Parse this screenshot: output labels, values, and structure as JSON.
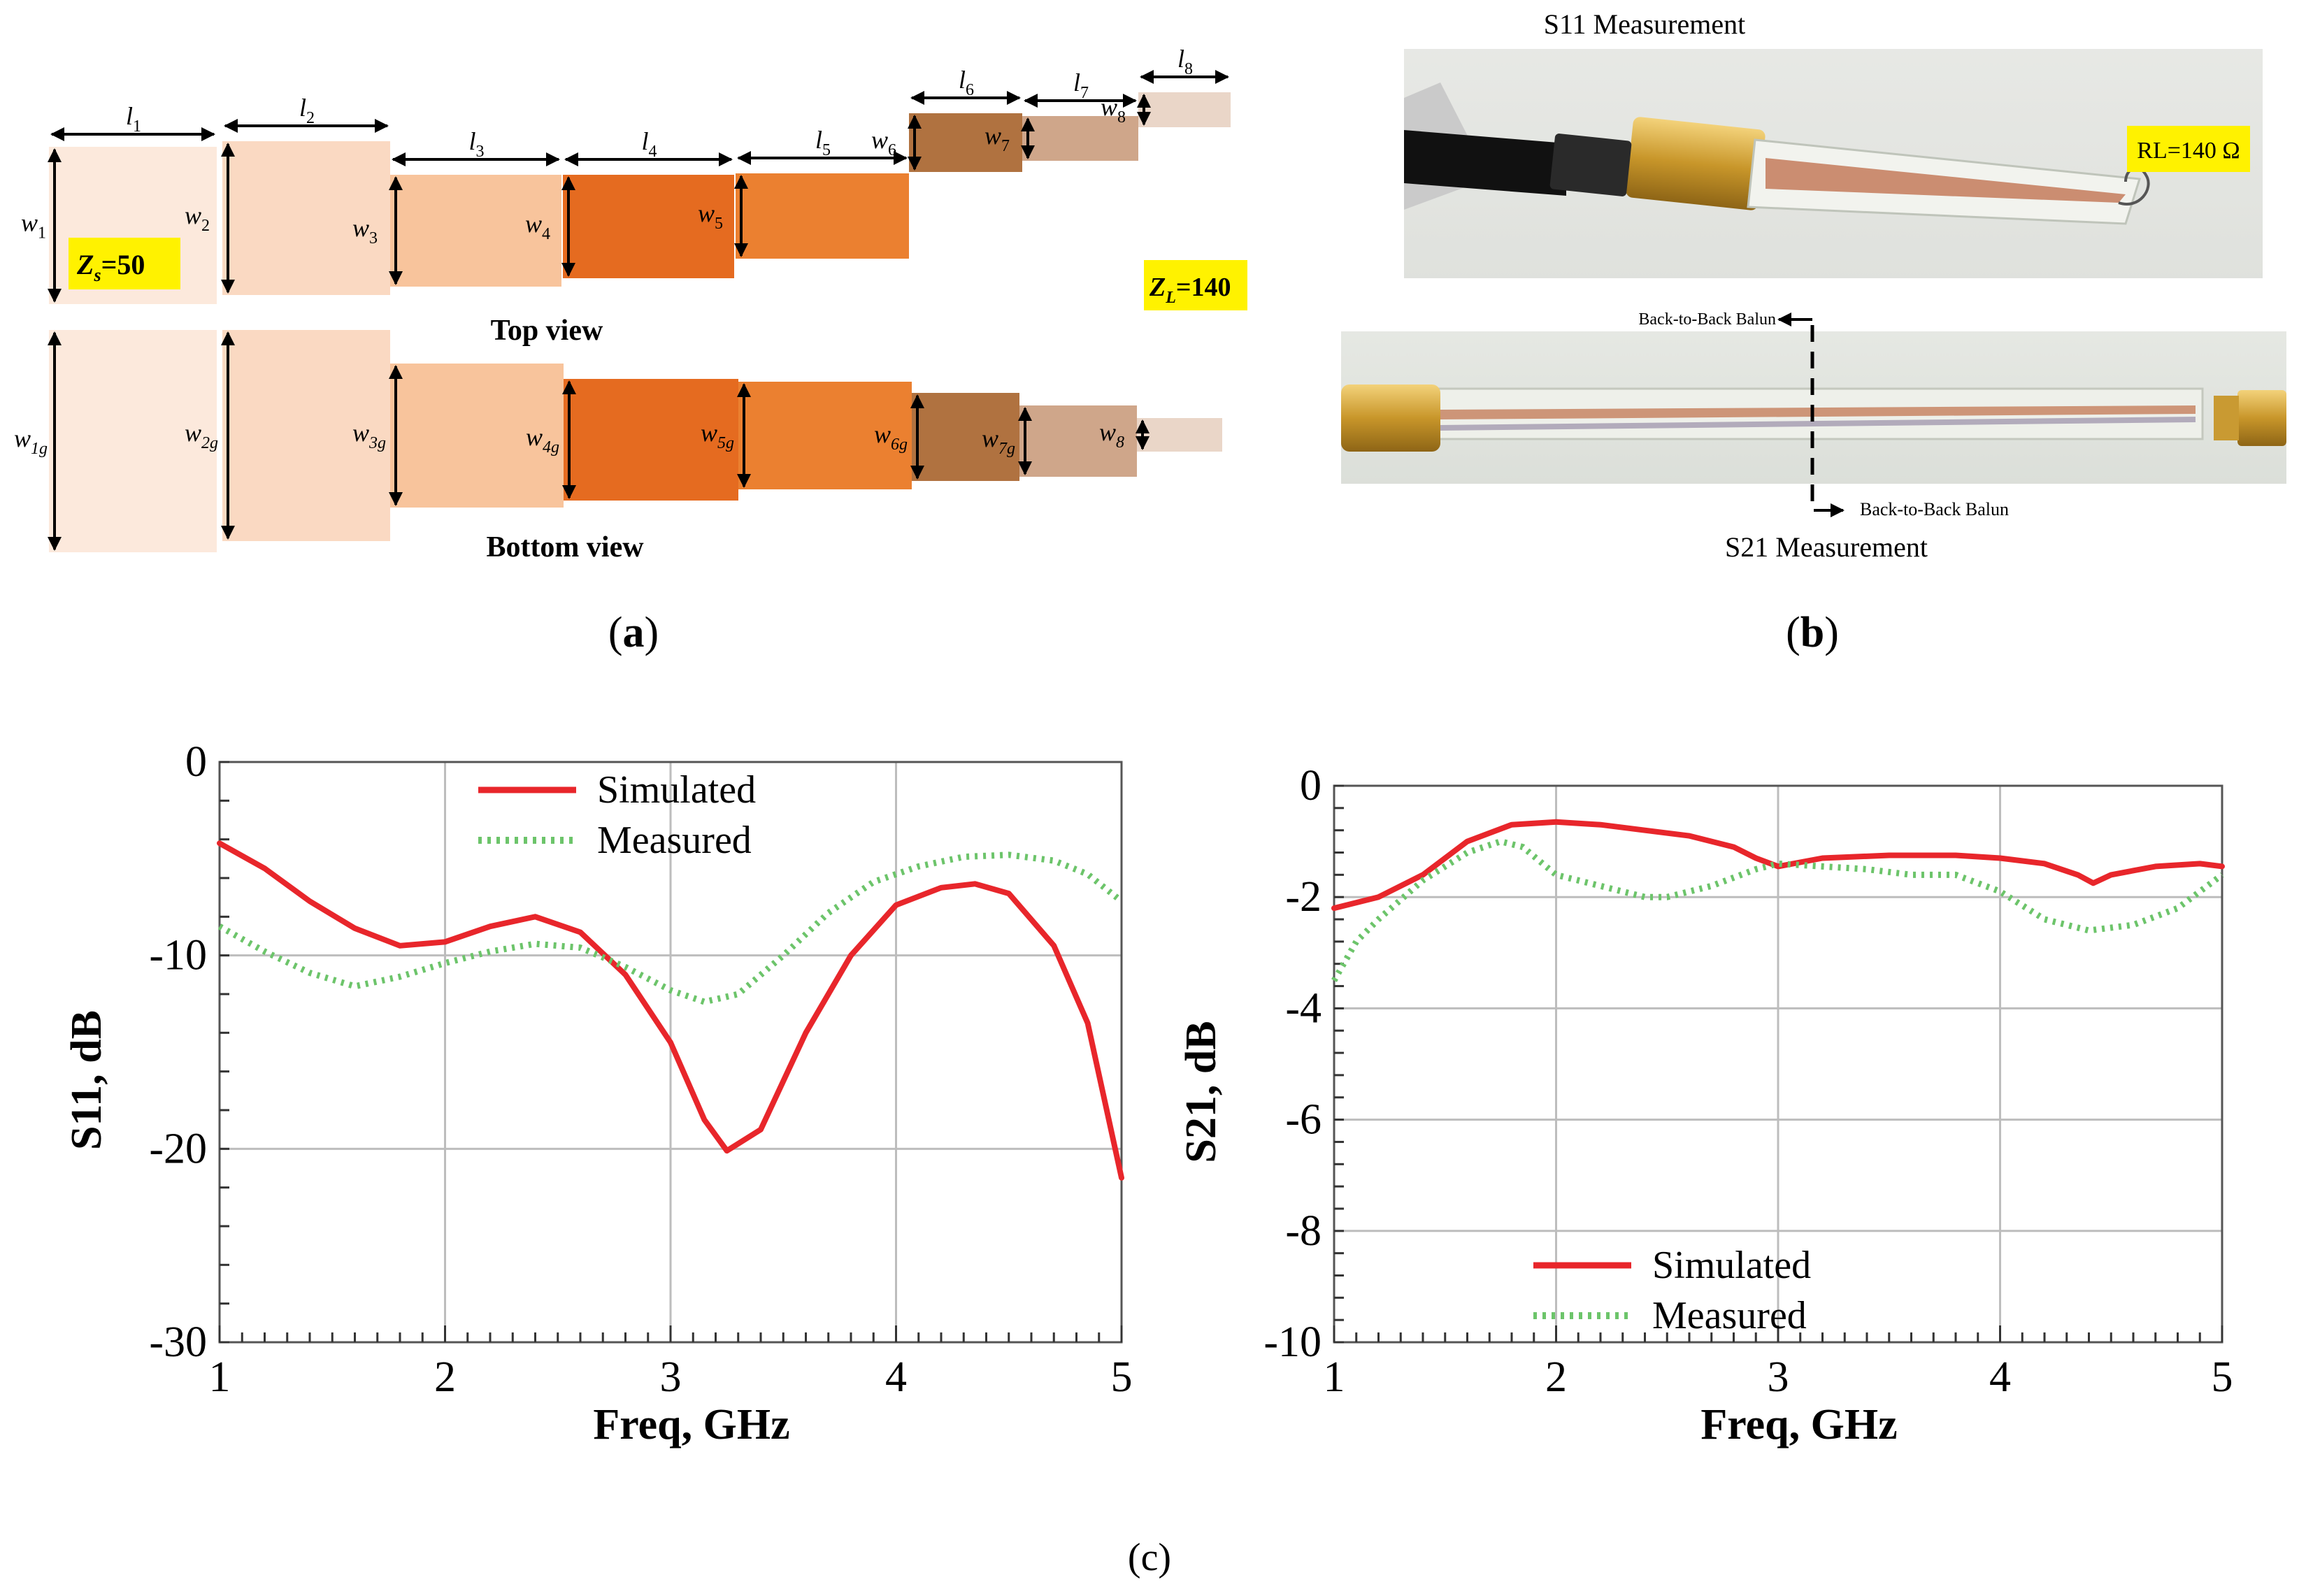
{
  "panel_a": {
    "segments": [
      {
        "l": "l",
        "l_sub": "1",
        "w": "w",
        "w_sub": "1",
        "wg": "w",
        "wg_sub": "1g",
        "color": "#FCE9DC"
      },
      {
        "l": "l",
        "l_sub": "2",
        "w": "w",
        "w_sub": "2",
        "wg": "w",
        "wg_sub": "2g",
        "color": "#FAD9C2"
      },
      {
        "l": "l",
        "l_sub": "3",
        "w": "w",
        "w_sub": "3",
        "wg": "w",
        "wg_sub": "3g",
        "color": "#F8C49C"
      },
      {
        "l": "l",
        "l_sub": "4",
        "w": "w",
        "w_sub": "4",
        "wg": "w",
        "wg_sub": "4g",
        "color": "#E56B20"
      },
      {
        "l": "l",
        "l_sub": "5",
        "w": "w",
        "w_sub": "5",
        "wg": "w",
        "wg_sub": "5g",
        "color": "#EB8030"
      },
      {
        "l": "l",
        "l_sub": "6",
        "w": "w",
        "w_sub": "6",
        "wg": "w",
        "wg_sub": "6g",
        "color": "#B07240"
      },
      {
        "l": "l",
        "l_sub": "7",
        "w": "w",
        "w_sub": "7",
        "wg": "w",
        "wg_sub": "7g",
        "color": "#CFA68A"
      },
      {
        "l": "l",
        "l_sub": "8",
        "w": "w",
        "w_sub": "8",
        "wg": "w",
        "wg_sub": "8",
        "color": "#EAD6C8"
      }
    ],
    "zs_label": "Z",
    "zs_sub": "s",
    "zs_value": "=50",
    "zl_label": "Z",
    "zl_sub": "L",
    "zl_value": "=140",
    "top_view": "Top view",
    "bottom_view": "Bottom view",
    "caption_open": "(",
    "caption_letter": "a",
    "caption_close": ")",
    "highlight_color": "#FFF200"
  },
  "panel_b": {
    "s11_title": "S11 Measurement",
    "rl_label": "RL=140 Ω",
    "back_to_back_1": "Back-to-Back Balun",
    "back_to_back_2": "Back-to-Back Balun",
    "s21_title": "S21 Measurement",
    "caption_open": "(",
    "caption_letter": "b",
    "caption_close": ")"
  },
  "panel_c_caption": "(c)",
  "chart_data": [
    {
      "type": "line",
      "xlabel": "Freq, GHz",
      "ylabel": "S11, dB",
      "xlim": [
        1,
        5
      ],
      "ylim": [
        -30,
        0
      ],
      "xticks": [
        "1",
        "2",
        "3",
        "4",
        "5"
      ],
      "yticks": [
        "0",
        "-10",
        "-20",
        "-30"
      ],
      "ytick_values": [
        0,
        -10,
        -20,
        -30
      ],
      "grid": true,
      "legend_position": "top-center",
      "series": [
        {
          "name": "Simulated",
          "color": "#E8262B",
          "style": "solid",
          "x": [
            1,
            1.2,
            1.4,
            1.6,
            1.8,
            2.0,
            2.2,
            2.4,
            2.6,
            2.8,
            3.0,
            3.15,
            3.25,
            3.4,
            3.6,
            3.8,
            4.0,
            4.2,
            4.35,
            4.5,
            4.7,
            4.85,
            5.0
          ],
          "y": [
            -4.2,
            -5.5,
            -7.2,
            -8.6,
            -9.5,
            -9.3,
            -8.5,
            -8.0,
            -8.8,
            -11.0,
            -14.5,
            -18.5,
            -20.1,
            -19.0,
            -14.0,
            -10.0,
            -7.4,
            -6.5,
            -6.3,
            -6.8,
            -9.5,
            -13.5,
            -21.5
          ]
        },
        {
          "name": "Measured",
          "color": "#6CC46A",
          "style": "dotted",
          "x": [
            1,
            1.2,
            1.4,
            1.6,
            1.8,
            2.0,
            2.2,
            2.4,
            2.6,
            2.8,
            3.0,
            3.15,
            3.3,
            3.5,
            3.7,
            3.9,
            4.1,
            4.3,
            4.5,
            4.7,
            4.85,
            5.0
          ],
          "y": [
            -8.5,
            -9.8,
            -10.9,
            -11.6,
            -11.1,
            -10.4,
            -9.8,
            -9.4,
            -9.6,
            -10.6,
            -11.8,
            -12.4,
            -12.0,
            -10.0,
            -7.8,
            -6.2,
            -5.4,
            -4.9,
            -4.8,
            -5.1,
            -5.8,
            -7.2
          ]
        }
      ]
    },
    {
      "type": "line",
      "xlabel": "Freq, GHz",
      "ylabel": "S21, dB",
      "xlim": [
        1,
        5
      ],
      "ylim": [
        -10,
        0
      ],
      "xticks": [
        "1",
        "2",
        "3",
        "4",
        "5"
      ],
      "yticks": [
        "0",
        "-2",
        "-4",
        "-6",
        "-8",
        "-10"
      ],
      "ytick_values": [
        0,
        -2,
        -4,
        -6,
        -8,
        -10
      ],
      "grid": true,
      "legend_position": "bottom-center",
      "series": [
        {
          "name": "Simulated",
          "color": "#E8262B",
          "style": "solid",
          "x": [
            1,
            1.2,
            1.4,
            1.6,
            1.8,
            2.0,
            2.2,
            2.4,
            2.6,
            2.8,
            2.9,
            3.0,
            3.2,
            3.5,
            3.8,
            4.0,
            4.2,
            4.35,
            4.42,
            4.5,
            4.7,
            4.9,
            5.0
          ],
          "y": [
            -2.2,
            -2.0,
            -1.6,
            -1.0,
            -0.7,
            -0.65,
            -0.7,
            -0.8,
            -0.9,
            -1.1,
            -1.3,
            -1.45,
            -1.3,
            -1.25,
            -1.25,
            -1.3,
            -1.4,
            -1.6,
            -1.75,
            -1.6,
            -1.45,
            -1.4,
            -1.45
          ]
        },
        {
          "name": "Measured",
          "color": "#6CC46A",
          "style": "dotted",
          "x": [
            1,
            1.1,
            1.2,
            1.4,
            1.6,
            1.75,
            1.85,
            2.0,
            2.2,
            2.4,
            2.5,
            2.7,
            2.9,
            3.0,
            3.2,
            3.4,
            3.6,
            3.8,
            4.0,
            4.2,
            4.4,
            4.6,
            4.8,
            4.9,
            5.0
          ],
          "y": [
            -3.5,
            -2.8,
            -2.4,
            -1.7,
            -1.2,
            -1.0,
            -1.1,
            -1.6,
            -1.8,
            -2.0,
            -2.0,
            -1.8,
            -1.5,
            -1.4,
            -1.45,
            -1.5,
            -1.6,
            -1.6,
            -1.9,
            -2.4,
            -2.6,
            -2.5,
            -2.2,
            -1.9,
            -1.6
          ]
        }
      ]
    }
  ]
}
